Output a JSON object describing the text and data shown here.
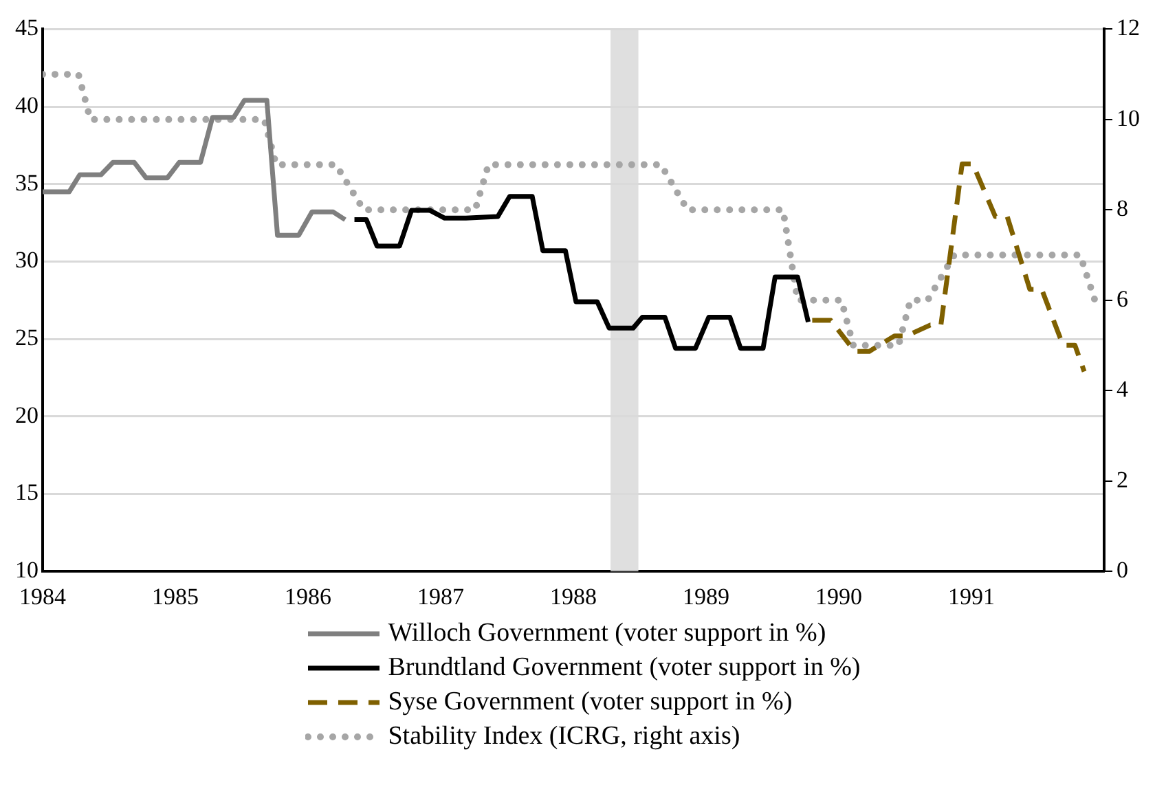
{
  "chart_data": {
    "type": "line",
    "xlim": [
      1984,
      1992
    ],
    "xticks": [
      1984,
      1985,
      1986,
      1987,
      1988,
      1989,
      1990,
      1991
    ],
    "ylim": [
      10,
      45
    ],
    "yticks": [
      10,
      15,
      20,
      25,
      30,
      35,
      40,
      45
    ],
    "y2lim": [
      0,
      12
    ],
    "y2ticks": [
      0,
      2,
      4,
      6,
      8,
      10,
      12
    ],
    "grid": "y",
    "legend": "bottom",
    "marker": "none",
    "bands": [
      {
        "axis": "x",
        "from": 1988.28,
        "to": 1988.49,
        "color": "#d9d9d9"
      }
    ],
    "series": [
      {
        "name": "Willoch Government (voter support in %)",
        "color": "#7f7f7f",
        "line_style": "solid",
        "x": [
          1984,
          1984.2,
          1984.28,
          1984.44,
          1984.53,
          1984.69,
          1984.78,
          1984.94,
          1985.03,
          1985.19,
          1985.28,
          1985.44,
          1985.52,
          1985.69,
          1985.77,
          1985.93,
          1986.03,
          1986.19,
          1986.28
        ],
        "values": [
          34.5,
          34.5,
          35.6,
          35.6,
          36.4,
          36.4,
          35.4,
          35.4,
          36.4,
          36.4,
          39.3,
          39.3,
          40.4,
          40.4,
          31.7,
          31.7,
          33.2,
          33.2,
          32.7
        ]
      },
      {
        "name": "Brundtland Government (voter support in %)",
        "color": "#000000",
        "line_style": "solid",
        "x": [
          1986.35,
          1986.44,
          1986.52,
          1986.69,
          1986.78,
          1986.92,
          1987.03,
          1987.19,
          1987.43,
          1987.52,
          1987.69,
          1987.77,
          1987.94,
          1988.02,
          1988.18,
          1988.27,
          1988.45,
          1988.52,
          1988.69,
          1988.77,
          1988.92,
          1989.02,
          1989.18,
          1989.26,
          1989.43,
          1989.52,
          1989.69,
          1989.77
        ],
        "values": [
          32.7,
          32.7,
          31,
          31,
          33.3,
          33.3,
          32.8,
          32.8,
          32.9,
          34.2,
          34.2,
          30.7,
          30.7,
          27.4,
          27.4,
          25.7,
          25.7,
          26.4,
          26.4,
          24.4,
          24.4,
          26.4,
          26.4,
          24.4,
          24.4,
          29,
          29,
          26.1
        ]
      },
      {
        "name": "Syse Government (voter support in %)",
        "color": "#7f6000",
        "line_style": "dashed",
        "x": [
          1989.8,
          1989.94,
          1990.12,
          1990.23,
          1990.42,
          1990.51,
          1990.69,
          1990.77,
          1990.93,
          1991.01,
          1991.18,
          1991.27,
          1991.44,
          1991.53,
          1991.69,
          1991.78,
          1991.85
        ],
        "values": [
          26.2,
          26.2,
          24.2,
          24.2,
          25.2,
          25.2,
          25.9,
          25.9,
          36.3,
          36.3,
          32.9,
          32.9,
          28.2,
          28.2,
          24.6,
          24.6,
          22.9
        ]
      },
      {
        "name": "Stability Index (ICRG, right axis)",
        "color": "#a6a6a6",
        "line_style": "dotted",
        "axis": "y2",
        "x": [
          1984,
          1984.27,
          1984.36,
          1985.67,
          1985.76,
          1986.21,
          1986.42,
          1987.26,
          1987.36,
          1988.66,
          1988.86,
          1989.58,
          1989.69,
          1990.02,
          1990.11,
          1990.45,
          1990.54,
          1990.67,
          1990.87,
          1991.82,
          1991.93,
          1991.98
        ],
        "values": [
          11,
          11,
          10,
          10,
          9,
          9,
          8,
          8,
          9,
          9,
          8,
          8,
          6,
          6,
          5,
          5,
          6,
          6,
          7,
          7,
          6,
          6
        ]
      }
    ]
  }
}
